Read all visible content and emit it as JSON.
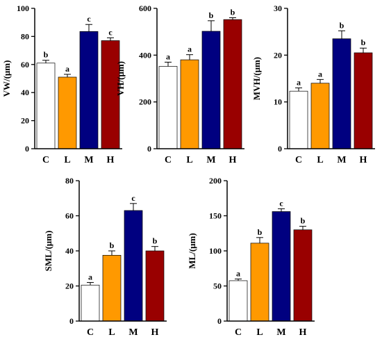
{
  "colors": {
    "C": "#ffffff",
    "L": "#ff9900",
    "M": "#000080",
    "H": "#990000",
    "axis": "#000000",
    "error": "#000000"
  },
  "chart_data": [
    {
      "id": "vw",
      "type": "bar",
      "ylabel": "VW/(μm)",
      "ylim": [
        0,
        100
      ],
      "yticks": [
        "0",
        "20",
        "40",
        "60",
        "80",
        "100"
      ],
      "categories": [
        "C",
        "L",
        "M",
        "H"
      ],
      "values": [
        61,
        51,
        83.5,
        77
      ],
      "errors": [
        2,
        2,
        5,
        2
      ],
      "labels": [
        "b",
        "a",
        "c",
        "c"
      ]
    },
    {
      "id": "vh",
      "type": "bar",
      "ylabel": "VH/(μm)",
      "ylim": [
        0,
        600
      ],
      "yticks": [
        "0",
        "200",
        "400",
        "600"
      ],
      "categories": [
        "C",
        "L",
        "M",
        "H"
      ],
      "values": [
        352,
        380,
        502,
        552
      ],
      "errors": [
        18,
        22,
        45,
        8
      ],
      "labels": [
        "a",
        "a",
        "b",
        "b"
      ]
    },
    {
      "id": "mvh",
      "type": "bar",
      "ylabel": "MVH/(μm)",
      "ylim": [
        0,
        30
      ],
      "yticks": [
        "0",
        "10",
        "20",
        "30"
      ],
      "categories": [
        "C",
        "L",
        "M",
        "H"
      ],
      "values": [
        12.3,
        14,
        23.5,
        20.5
      ],
      "errors": [
        0.7,
        0.8,
        1.7,
        1.0
      ],
      "labels": [
        "a",
        "a",
        "b",
        "b"
      ]
    },
    {
      "id": "sml",
      "type": "bar",
      "ylabel": "SML/(μm)",
      "ylim": [
        0,
        80
      ],
      "yticks": [
        "0",
        "20",
        "40",
        "60",
        "80"
      ],
      "categories": [
        "C",
        "L",
        "M",
        "H"
      ],
      "values": [
        20.5,
        37.5,
        63,
        40
      ],
      "errors": [
        1.5,
        2.5,
        4,
        2.5
      ],
      "labels": [
        "a",
        "b",
        "c",
        "b"
      ]
    },
    {
      "id": "ml",
      "type": "bar",
      "ylabel": "ML/(μm)",
      "ylim": [
        0,
        200
      ],
      "yticks": [
        "0",
        "50",
        "100",
        "150",
        "200"
      ],
      "categories": [
        "C",
        "L",
        "M",
        "H"
      ],
      "values": [
        57.5,
        111,
        156,
        130
      ],
      "errors": [
        2.5,
        8,
        4,
        5
      ],
      "labels": [
        "a",
        "b",
        "c",
        "b"
      ]
    }
  ]
}
